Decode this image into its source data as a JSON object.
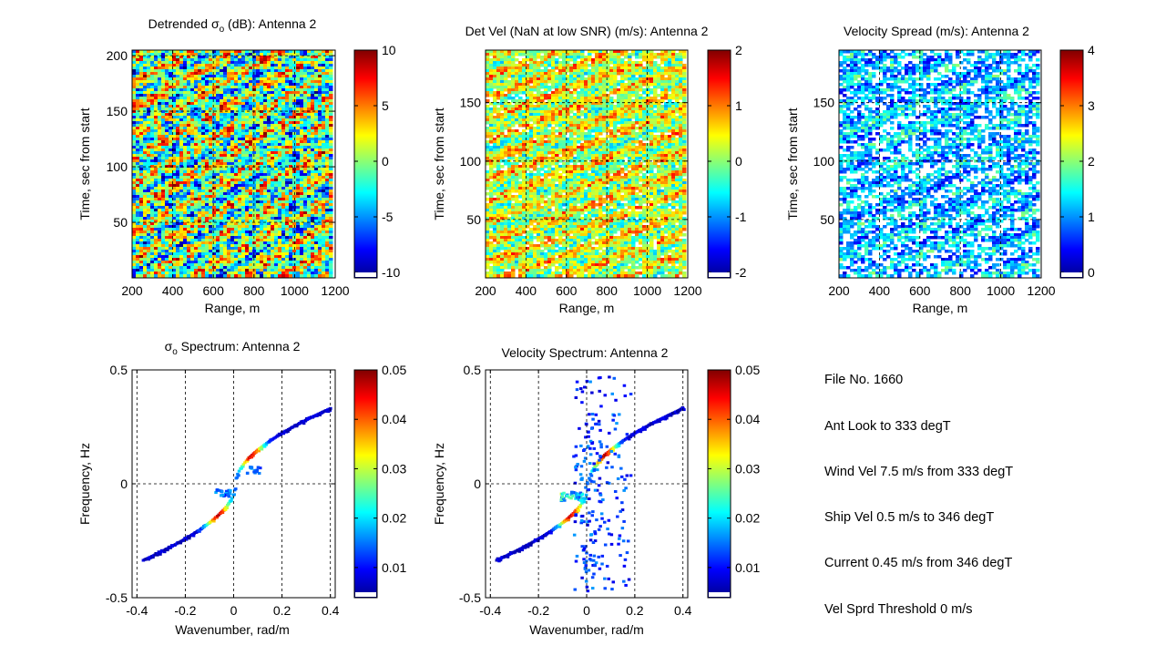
{
  "colors": {
    "jet_low": "#00008f",
    "jet_mid": "#7fff7f",
    "jet_high": "#800000",
    "white": "#ffffff"
  },
  "chart_data": [
    {
      "type": "heatmap",
      "title_pre": "Detrended ",
      "title_sym": "σ",
      "title_sub": "o",
      "title_post": " (dB): Antenna 2",
      "xlabel": "Range, m",
      "ylabel": "Time, sec from start",
      "xlim": [
        200,
        1200
      ],
      "ylim": [
        0,
        205
      ],
      "xticks": [
        "200",
        "400",
        "600",
        "800",
        "1000",
        "1200"
      ],
      "yticks": [
        "50",
        "100",
        "150",
        "200"
      ],
      "colorbar": {
        "clim": [
          -10,
          10
        ],
        "ticks": [
          "10",
          "5",
          "0",
          "-5",
          "-10"
        ]
      },
      "values_description": "dense striped field of sigma_o anomalies, values spanning -10 to 10 dB with diagonal wave streaks"
    },
    {
      "type": "heatmap",
      "title": "Det Vel (NaN at low SNR)  (m/s): Antenna 2",
      "xlabel": "Range, m",
      "ylabel": "Time, sec from start",
      "xlim": [
        200,
        1200
      ],
      "ylim": [
        0,
        195
      ],
      "xticks": [
        "200",
        "400",
        "600",
        "800",
        "1000",
        "1200"
      ],
      "yticks": [
        "50",
        "100",
        "150"
      ],
      "colorbar": {
        "clim": [
          -2,
          2
        ],
        "ticks": [
          "2",
          "1",
          "0",
          "-1",
          "-2"
        ]
      },
      "values_description": "velocity field mostly near 0 to 1 m/s, with NaN (white) gaps at low SNR"
    },
    {
      "type": "heatmap",
      "title": "Velocity Spread (m/s): Antenna 2",
      "xlabel": "Range, m",
      "ylabel": "Time, sec from start",
      "xlim": [
        200,
        1200
      ],
      "ylim": [
        0,
        195
      ],
      "xticks": [
        "200",
        "400",
        "600",
        "800",
        "1000",
        "1200"
      ],
      "yticks": [
        "50",
        "100",
        "150"
      ],
      "colorbar": {
        "clim": [
          0,
          4
        ],
        "ticks": [
          "4",
          "3",
          "2",
          "1",
          "0"
        ]
      },
      "values_description": "velocity spread mostly 0.5 to 2 m/s, large white (low value / NaN) areas"
    },
    {
      "type": "heatmap",
      "title_pre": "",
      "title_sym": "σ",
      "title_sub": "o",
      "title_post": " Spectrum: Antenna 2",
      "xlabel": "Wavenumber, rad/m",
      "ylabel": "Frequency, Hz",
      "xlim": [
        -0.42,
        0.42
      ],
      "ylim": [
        -0.5,
        0.5
      ],
      "xticks": [
        "-0.4",
        "-0.2",
        "0",
        "0.2",
        "0.4"
      ],
      "yticks": [
        "0.5",
        "0",
        "-0.5"
      ],
      "colorbar": {
        "clim": [
          0.005,
          0.05
        ],
        "ticks": [
          "0.05",
          "0.04",
          "0.03",
          "0.02",
          "0.01"
        ]
      },
      "values_description": "spectral energy concentrated along the wave dispersion curve through the origin, peak near k=-0.07, f=-0.15 and k=0.07, f=0.12"
    },
    {
      "type": "heatmap",
      "title": "Velocity Spectrum: Antenna 2",
      "xlabel": "Wavenumber, rad/m",
      "ylabel": "Frequency, Hz",
      "xlim": [
        -0.42,
        0.42
      ],
      "ylim": [
        -0.5,
        0.5
      ],
      "xticks": [
        "-0.4",
        "-0.2",
        "0",
        "0.2",
        "0.4"
      ],
      "yticks": [
        "0.5",
        "0",
        "-0.5"
      ],
      "colorbar": {
        "clim": [
          0.005,
          0.05
        ],
        "ticks": [
          "0.05",
          "0.04",
          "0.03",
          "0.02",
          "0.01"
        ]
      },
      "values_description": "energy along dispersion curve plus vertical scatter near k=0"
    }
  ],
  "info": {
    "lines": [
      "File No. 1660",
      "Ant Look to  333 degT",
      "Wind Vel  7.5 m/s from 333 degT",
      "Ship Vel 0.5 m/s to 346 degT",
      "Current 0.45 m/s from 346 degT",
      "Vel Sprd Threshold  0 m/s"
    ]
  }
}
